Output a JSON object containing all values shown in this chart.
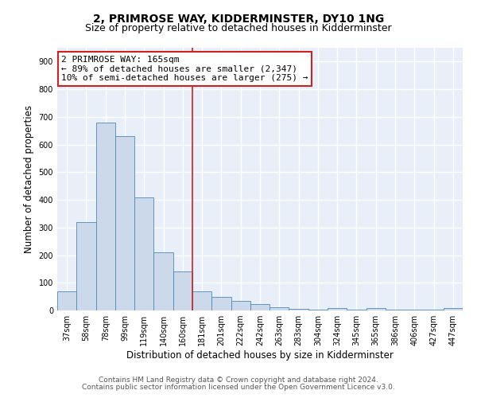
{
  "title": "2, PRIMROSE WAY, KIDDERMINSTER, DY10 1NG",
  "subtitle": "Size of property relative to detached houses in Kidderminster",
  "xlabel": "Distribution of detached houses by size in Kidderminster",
  "ylabel": "Number of detached properties",
  "categories": [
    "37sqm",
    "58sqm",
    "78sqm",
    "99sqm",
    "119sqm",
    "140sqm",
    "160sqm",
    "181sqm",
    "201sqm",
    "222sqm",
    "242sqm",
    "263sqm",
    "283sqm",
    "304sqm",
    "324sqm",
    "345sqm",
    "365sqm",
    "386sqm",
    "406sqm",
    "427sqm",
    "447sqm"
  ],
  "values": [
    70,
    320,
    680,
    630,
    410,
    210,
    140,
    70,
    50,
    35,
    22,
    12,
    5,
    2,
    8,
    2,
    8,
    2,
    2,
    2,
    8
  ],
  "bar_color": "#ccd9ea",
  "bar_edge_color": "#4f8ab8",
  "vline_x_index": 6,
  "vline_color": "#cc2222",
  "ylim": [
    0,
    950
  ],
  "yticks": [
    0,
    100,
    200,
    300,
    400,
    500,
    600,
    700,
    800,
    900
  ],
  "annotation_text": "2 PRIMROSE WAY: 165sqm\n← 89% of detached houses are smaller (2,347)\n10% of semi-detached houses are larger (275) →",
  "annotation_box_color": "white",
  "annotation_box_edge_color": "#cc2222",
  "footer_line1": "Contains HM Land Registry data © Crown copyright and database right 2024.",
  "footer_line2": "Contains public sector information licensed under the Open Government Licence v3.0.",
  "background_color": "#e8eff8",
  "grid_color": "white",
  "title_fontsize": 10,
  "subtitle_fontsize": 9,
  "tick_fontsize": 7,
  "ylabel_fontsize": 8.5,
  "xlabel_fontsize": 8.5,
  "footer_fontsize": 6.5,
  "annot_fontsize": 8
}
